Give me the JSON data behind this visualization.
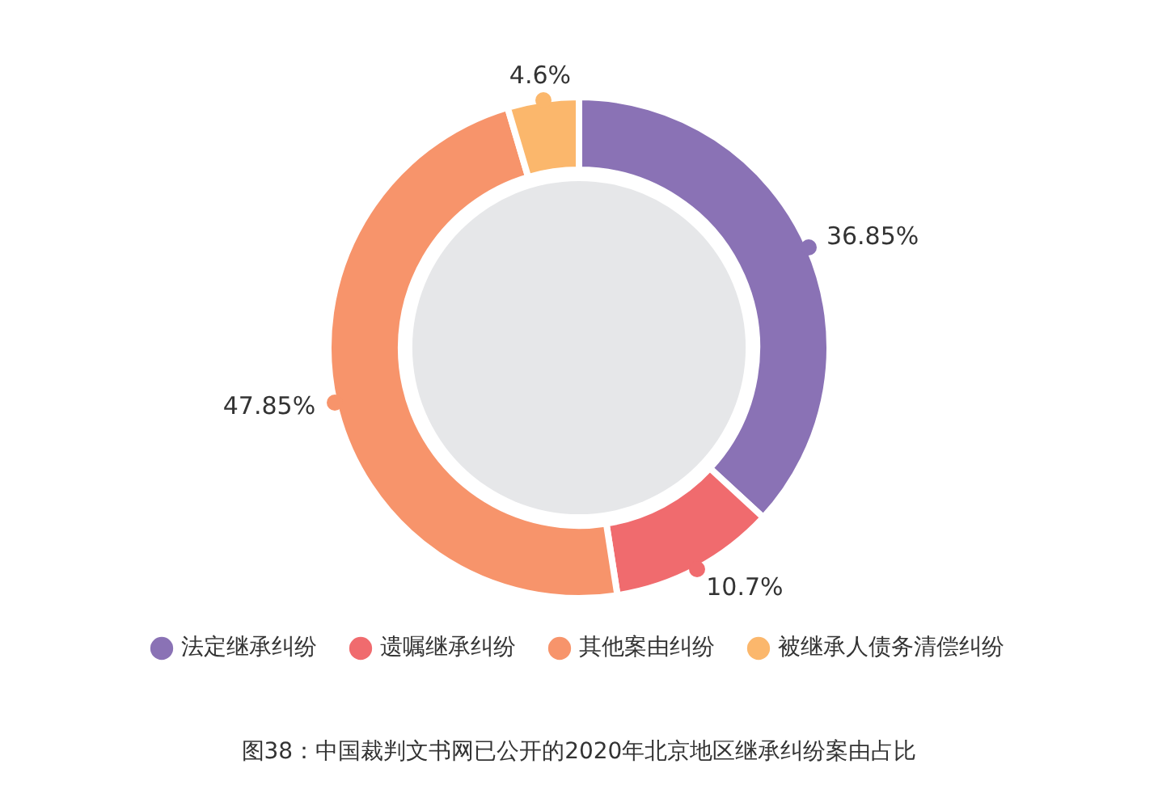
{
  "chart_data": {
    "type": "donut",
    "title": "图38：中国裁判文书网已公开的2020年北京地区继承纠纷案由占比",
    "categories": [
      "法定继承纠纷",
      "遗嘱继承纠纷",
      "其他案由纠纷",
      "被继承人债务清偿纠纷"
    ],
    "values": [
      36.85,
      10.7,
      47.85,
      4.6
    ],
    "value_labels": [
      "36.85%",
      "10.7%",
      "47.85%",
      "4.6%"
    ],
    "colors": [
      "#8a72b5",
      "#f06b6e",
      "#f7946b",
      "#fbb76c"
    ],
    "legend": "bottom"
  }
}
